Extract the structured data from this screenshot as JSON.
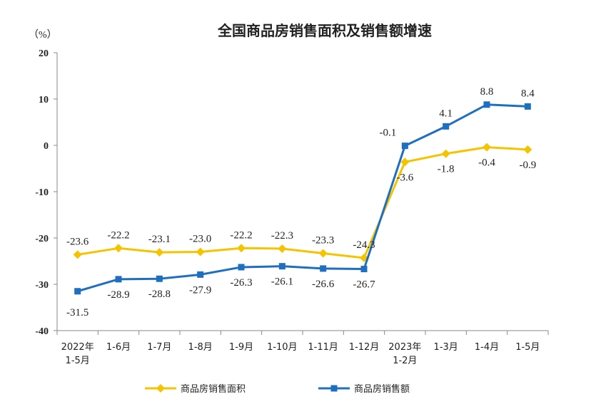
{
  "chart_data": {
    "type": "line",
    "title": "全国商品房销售面积及销售额增速",
    "unit": "（%）",
    "categories": [
      [
        "2022年",
        "1-5月"
      ],
      [
        "1-6月"
      ],
      [
        "1-7月"
      ],
      [
        "1-8月"
      ],
      [
        "1-9月"
      ],
      [
        "1-10月"
      ],
      [
        "1-11月"
      ],
      [
        "1-12月"
      ],
      [
        "2023年",
        "1-2月"
      ],
      [
        "1-3月"
      ],
      [
        "1-4月"
      ],
      [
        "1-5月"
      ]
    ],
    "yticks": [
      20,
      10,
      0,
      -10,
      -20,
      -30,
      -40
    ],
    "ylim": [
      -40,
      20
    ],
    "series": [
      {
        "name": "商品房销售面积",
        "color": "#F5C400",
        "marker": "diamond",
        "label_position": "above-then-below",
        "values": [
          -23.6,
          -22.2,
          -23.1,
          -23.0,
          -22.2,
          -22.3,
          -23.3,
          -24.3,
          -3.6,
          -1.8,
          -0.4,
          -0.9
        ],
        "labels": [
          "-23.6",
          "-22.2",
          "-23.1",
          "-23.0",
          "-22.2",
          "-22.3",
          "-23.3",
          "-24.3",
          "-3.6",
          "-1.8",
          "-0.4",
          "-0.9"
        ]
      },
      {
        "name": "商品房销售额",
        "color": "#1F6FC0",
        "marker": "square",
        "label_position": "below-then-above",
        "values": [
          -31.5,
          -28.9,
          -28.8,
          -27.9,
          -26.3,
          -26.1,
          -26.6,
          -26.7,
          -0.1,
          4.1,
          8.8,
          8.4
        ],
        "labels": [
          "-31.5",
          "-28.9",
          "-28.8",
          "-27.9",
          "-26.3",
          "-26.1",
          "-26.6",
          "-26.7",
          "-0.1",
          "4.1",
          "8.8",
          "8.4"
        ]
      }
    ],
    "grid": false,
    "legend_position": "bottom"
  }
}
